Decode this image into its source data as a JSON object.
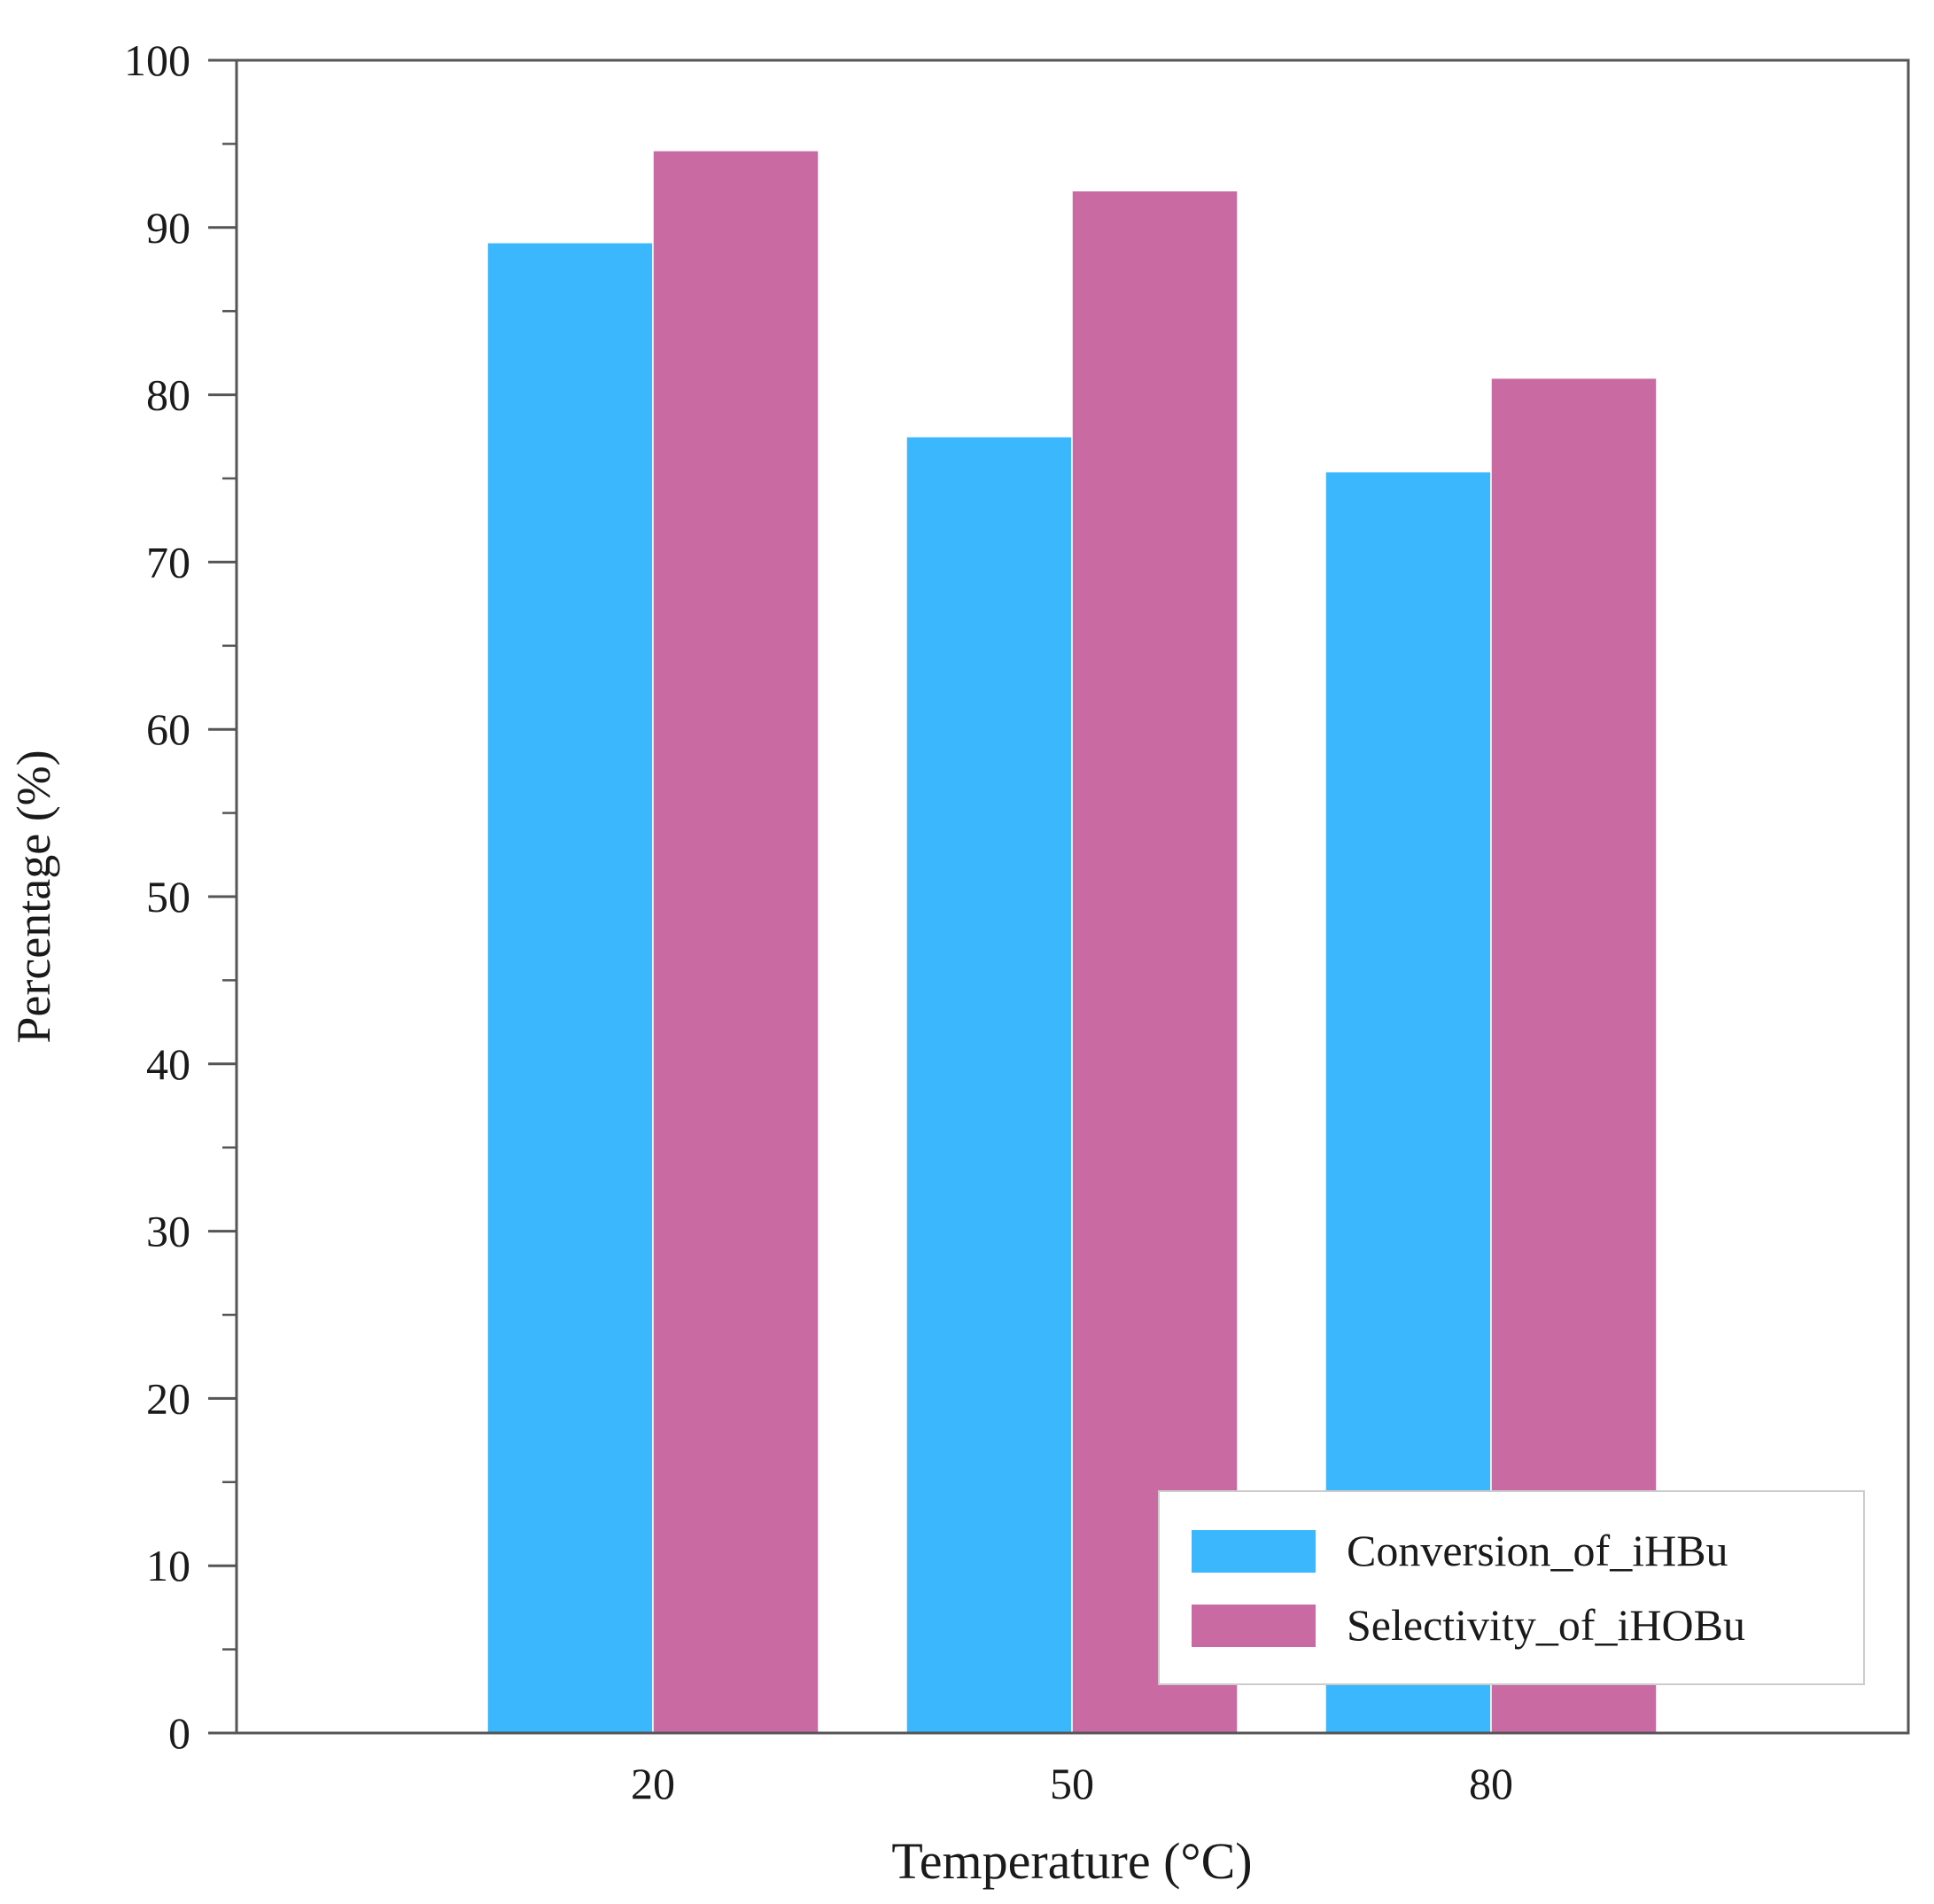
{
  "chart_data": {
    "type": "bar",
    "title": "",
    "xlabel": "Temperature (°C)",
    "ylabel": "Percentage (%)",
    "categories": [
      "20",
      "50",
      "80"
    ],
    "ylim": [
      0,
      100
    ],
    "yticks": [
      "0",
      "10",
      "20",
      "30",
      "40",
      "50",
      "60",
      "70",
      "80",
      "90",
      "100"
    ],
    "minor_ticks": true,
    "grid": false,
    "legend_position": "bottom-right",
    "series": [
      {
        "name": "Conversion_of_iHBu",
        "color": "#3BB7FD",
        "values": [
          89.1,
          77.5,
          75.4
        ]
      },
      {
        "name": "Selectivity_of_iHOBu",
        "color": "#C96AA3",
        "values": [
          94.6,
          92.2,
          81.0
        ]
      }
    ]
  }
}
